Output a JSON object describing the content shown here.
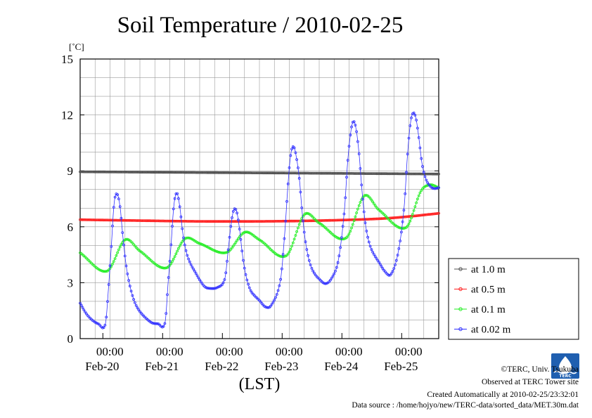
{
  "chart_data": {
    "type": "line",
    "title": "Soil Temperature / 2010-02-25",
    "ylabel": "[˚C]",
    "xlabel": "(LST)",
    "ylim": [
      0,
      15
    ],
    "yticks": [
      "0",
      "3",
      "6",
      "9",
      "12",
      "15"
    ],
    "xlim_days": [
      0,
      6
    ],
    "x_tick_time": "00:00",
    "x_ticks": [
      "Feb-20",
      "Feb-21",
      "Feb-22",
      "Feb-23",
      "Feb-24",
      "Feb-25"
    ],
    "grid": true,
    "legend_position": "right",
    "series": [
      {
        "name": "at 1.0 m",
        "color": "#505050",
        "x": [
          0,
          1,
          2,
          3,
          4,
          5,
          6
        ],
        "y": [
          8.95,
          8.93,
          8.91,
          8.89,
          8.87,
          8.85,
          8.83
        ]
      },
      {
        "name": "at 0.5 m",
        "color": "#ff2020",
        "x": [
          0,
          1,
          2,
          3,
          4,
          5,
          5.5,
          6
        ],
        "y": [
          6.38,
          6.33,
          6.29,
          6.29,
          6.33,
          6.43,
          6.55,
          6.72
        ]
      },
      {
        "name": "at 0.1 m",
        "color": "#22ee22",
        "x": [
          0,
          0.45,
          0.75,
          1.0,
          1.45,
          1.75,
          2.0,
          2.45,
          2.75,
          3.0,
          3.45,
          3.75,
          4.0,
          4.45,
          4.75,
          5.0,
          5.45,
          5.7,
          5.85,
          6.0
        ],
        "y": [
          4.6,
          3.62,
          5.3,
          4.7,
          3.8,
          5.35,
          5.1,
          4.62,
          5.7,
          5.3,
          4.45,
          6.65,
          6.2,
          5.4,
          7.65,
          6.9,
          5.95,
          7.9,
          8.25,
          8.1
        ]
      },
      {
        "name": "at 0.02 m",
        "color": "#3030ff",
        "x": [
          0,
          0.1,
          0.2,
          0.3,
          0.42,
          0.47,
          0.52,
          0.57,
          0.62,
          0.67,
          0.72,
          0.78,
          0.85,
          0.92,
          1.0,
          1.1,
          1.2,
          1.3,
          1.42,
          1.47,
          1.52,
          1.57,
          1.62,
          1.67,
          1.72,
          1.78,
          1.85,
          1.92,
          2.0,
          2.08,
          2.15,
          2.3,
          2.42,
          2.47,
          2.52,
          2.57,
          2.62,
          2.67,
          2.72,
          2.78,
          2.85,
          2.92,
          3.0,
          3.1,
          3.2,
          3.35,
          3.42,
          3.47,
          3.52,
          3.57,
          3.62,
          3.67,
          3.72,
          3.78,
          3.85,
          3.92,
          4.0,
          4.1,
          4.2,
          4.32,
          4.42,
          4.47,
          4.52,
          4.57,
          4.62,
          4.67,
          4.72,
          4.78,
          4.85,
          4.92,
          5.0,
          5.1,
          5.2,
          5.32,
          5.42,
          5.47,
          5.52,
          5.57,
          5.62,
          5.67,
          5.72,
          5.78,
          5.85,
          5.92,
          6.0
        ],
        "y": [
          1.9,
          1.35,
          1.0,
          0.8,
          0.75,
          2.5,
          4.9,
          7.3,
          7.75,
          7.0,
          5.3,
          3.7,
          2.6,
          1.9,
          1.45,
          1.1,
          0.85,
          0.8,
          0.85,
          2.9,
          5.0,
          7.2,
          7.8,
          7.0,
          5.6,
          4.6,
          4.0,
          3.6,
          3.15,
          2.8,
          2.7,
          2.75,
          3.2,
          4.5,
          6.0,
          6.9,
          6.8,
          5.8,
          4.4,
          3.3,
          2.6,
          2.3,
          2.05,
          1.7,
          1.8,
          3.1,
          5.5,
          7.9,
          9.8,
          10.3,
          9.7,
          8.5,
          6.6,
          5.0,
          4.0,
          3.5,
          3.2,
          2.95,
          3.2,
          4.2,
          6.8,
          9.2,
          10.9,
          11.65,
          11.2,
          9.8,
          7.8,
          6.0,
          5.0,
          4.5,
          4.1,
          3.6,
          3.45,
          4.6,
          7.0,
          9.5,
          11.4,
          12.1,
          11.8,
          10.7,
          9.4,
          8.6,
          8.2,
          8.05,
          8.1
        ]
      }
    ]
  },
  "footer": {
    "copyright": "©TERC, Univ. Tsukuba",
    "observed": "Observed at TERC Tower site",
    "created": "Created Automatically at 2010-02-25/23:32:01",
    "source": "Data source : /home/hojyo/new/TERC-data/sorted_data/MET.30m.dat"
  },
  "logo": {
    "label": "TERC"
  }
}
